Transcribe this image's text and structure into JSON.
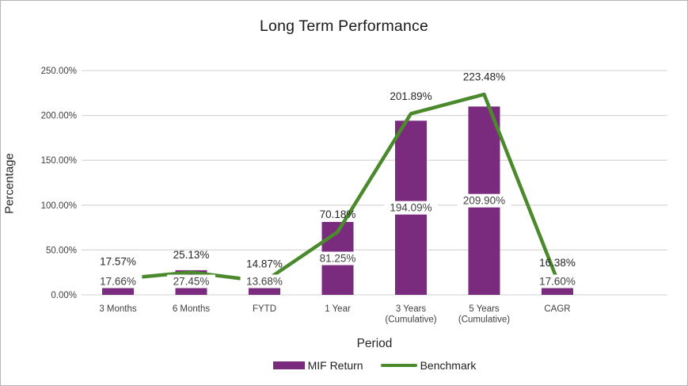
{
  "chart_data": {
    "type": "bar",
    "combo": "bar+line",
    "title": "Long Term Performance",
    "xlabel": "Period",
    "ylabel": "Percentage",
    "categories": [
      [
        "3 Months"
      ],
      [
        "6 Months"
      ],
      [
        "FYTD"
      ],
      [
        "1 Year"
      ],
      [
        "3 Years",
        "(Cumulative)"
      ],
      [
        "5 Years",
        "(Cumulative)"
      ],
      [
        "CAGR"
      ]
    ],
    "series": [
      {
        "name": "MIF Return",
        "type": "bar",
        "color": "#7B2B7E",
        "values": [
          17.66,
          27.45,
          13.68,
          81.25,
          194.09,
          209.9,
          17.6
        ],
        "labels": [
          "17.66%",
          "27.45%",
          "13.68%",
          "81.25%",
          "194.09%",
          "209.90%",
          "17.60%"
        ]
      },
      {
        "name": "Benchmark",
        "type": "line",
        "color": "#4B892D",
        "values": [
          17.57,
          25.13,
          14.87,
          70.18,
          201.89,
          223.48,
          16.38
        ],
        "labels": [
          "17.57%",
          "25.13%",
          "14.87%",
          "70.18%",
          "201.89%",
          "223.48%",
          "16.38%"
        ]
      }
    ],
    "ylim": [
      0,
      250
    ],
    "yticks": [
      "0.00%",
      "50.00%",
      "100.00%",
      "150.00%",
      "200.00%",
      "250.00%"
    ],
    "grid": true,
    "legend_position": "bottom",
    "label_text_color": "#3f3f3f",
    "gridline_color": "#d9d9d9"
  }
}
